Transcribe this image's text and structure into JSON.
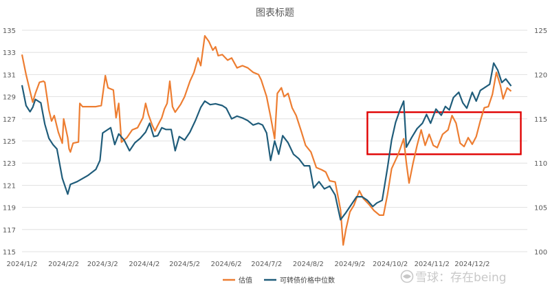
{
  "colors": {
    "valuation": "#ED7D31",
    "convertible_median": "#1F5C7A",
    "highlight_box": "#E00000",
    "grid": "#D9D9D9",
    "text": "#595959"
  },
  "watermark": {
    "icon": "snowball-icon",
    "text": "雪球：存在being"
  },
  "chart_data": {
    "type": "line",
    "title": "图表标题",
    "x_tick_labels": [
      "2024/1/2",
      "2024/2/2",
      "2024/3/2",
      "2024/4/2",
      "2024/5/2",
      "2024/6/2",
      "2024/7/2",
      "2024/8/2",
      "2024/9/2",
      "2024/10/2",
      "2024/11/2",
      "2024/12/2"
    ],
    "left_axis": {
      "ylim": [
        115,
        135
      ],
      "ticks": [
        115,
        117,
        119,
        121,
        123,
        125,
        127,
        129,
        131,
        133,
        135
      ]
    },
    "right_axis": {
      "ylim": [
        100,
        125
      ],
      "ticks": [
        100,
        105,
        110,
        115,
        120,
        125
      ]
    },
    "grid": "horizontal",
    "legend_position": "bottom",
    "series": [
      {
        "name": "估值",
        "axis": "left",
        "color": "#ED7D31",
        "points": [
          [
            "2024-01-02",
            132.8
          ],
          [
            "2024-01-05",
            131.0
          ],
          [
            "2024-01-08",
            129.5
          ],
          [
            "2024-01-10",
            128.5
          ],
          [
            "2024-01-12",
            129.3
          ],
          [
            "2024-01-15",
            130.3
          ],
          [
            "2024-01-18",
            130.4
          ],
          [
            "2024-01-19",
            130.3
          ],
          [
            "2024-01-22",
            127.8
          ],
          [
            "2024-01-24",
            126.8
          ],
          [
            "2024-01-26",
            127.3
          ],
          [
            "2024-01-29",
            125.8
          ],
          [
            "2024-02-01",
            124.8
          ],
          [
            "2024-02-02",
            127.0
          ],
          [
            "2024-02-05",
            125.3
          ],
          [
            "2024-02-06",
            124.3
          ],
          [
            "2024-02-07",
            124.0
          ],
          [
            "2024-02-09",
            124.8
          ],
          [
            "2024-02-13",
            124.9
          ],
          [
            "2024-02-14",
            128.4
          ],
          [
            "2024-02-16",
            128.1
          ],
          [
            "2024-02-20",
            128.1
          ],
          [
            "2024-02-26",
            128.1
          ],
          [
            "2024-03-01",
            128.2
          ],
          [
            "2024-03-04",
            130.9
          ],
          [
            "2024-03-06",
            129.8
          ],
          [
            "2024-03-10",
            129.6
          ],
          [
            "2024-03-12",
            127.1
          ],
          [
            "2024-03-14",
            128.4
          ],
          [
            "2024-03-16",
            124.9
          ],
          [
            "2024-03-20",
            125.3
          ],
          [
            "2024-03-24",
            126.0
          ],
          [
            "2024-03-28",
            126.2
          ],
          [
            "2024-04-01",
            127.1
          ],
          [
            "2024-04-03",
            128.4
          ],
          [
            "2024-04-05",
            127.4
          ],
          [
            "2024-04-08",
            126.4
          ],
          [
            "2024-04-10",
            125.9
          ],
          [
            "2024-04-12",
            126.4
          ],
          [
            "2024-04-15",
            127.1
          ],
          [
            "2024-04-17",
            127.9
          ],
          [
            "2024-04-19",
            128.4
          ],
          [
            "2024-04-21",
            130.4
          ],
          [
            "2024-04-23",
            128.1
          ],
          [
            "2024-04-25",
            127.6
          ],
          [
            "2024-04-29",
            128.3
          ],
          [
            "2024-05-02",
            129.0
          ],
          [
            "2024-05-06",
            130.4
          ],
          [
            "2024-05-09",
            131.2
          ],
          [
            "2024-05-12",
            132.5
          ],
          [
            "2024-05-14",
            131.8
          ],
          [
            "2024-05-17",
            134.5
          ],
          [
            "2024-05-20",
            134.0
          ],
          [
            "2024-05-23",
            133.2
          ],
          [
            "2024-05-25",
            133.5
          ],
          [
            "2024-05-27",
            132.7
          ],
          [
            "2024-05-30",
            132.8
          ],
          [
            "2024-06-03",
            132.3
          ],
          [
            "2024-06-06",
            132.5
          ],
          [
            "2024-06-10",
            131.6
          ],
          [
            "2024-06-14",
            131.8
          ],
          [
            "2024-06-18",
            131.6
          ],
          [
            "2024-06-22",
            131.2
          ],
          [
            "2024-06-26",
            131.0
          ],
          [
            "2024-06-28",
            130.5
          ],
          [
            "2024-07-02",
            129.0
          ],
          [
            "2024-07-05",
            127.2
          ],
          [
            "2024-07-08",
            125.2
          ],
          [
            "2024-07-10",
            129.3
          ],
          [
            "2024-07-13",
            129.8
          ],
          [
            "2024-07-15",
            129.0
          ],
          [
            "2024-07-18",
            129.3
          ],
          [
            "2024-07-21",
            128.0
          ],
          [
            "2024-07-24",
            127.3
          ],
          [
            "2024-07-28",
            125.8
          ],
          [
            "2024-07-31",
            124.6
          ],
          [
            "2024-08-04",
            124.0
          ],
          [
            "2024-08-08",
            122.6
          ],
          [
            "2024-08-12",
            122.4
          ],
          [
            "2024-08-15",
            122.2
          ],
          [
            "2024-08-18",
            121.4
          ],
          [
            "2024-08-22",
            121.3
          ],
          [
            "2024-08-26",
            118.8
          ],
          [
            "2024-08-28",
            115.6
          ],
          [
            "2024-08-30",
            117.0
          ],
          [
            "2024-09-02",
            118.6
          ],
          [
            "2024-09-05",
            119.2
          ],
          [
            "2024-09-09",
            120.5
          ],
          [
            "2024-09-12",
            119.8
          ],
          [
            "2024-09-16",
            119.3
          ],
          [
            "2024-09-20",
            118.7
          ],
          [
            "2024-09-24",
            118.3
          ],
          [
            "2024-09-27",
            118.3
          ],
          [
            "2024-09-30",
            120.2
          ],
          [
            "2024-10-03",
            122.5
          ],
          [
            "2024-10-08",
            123.8
          ],
          [
            "2024-10-12",
            125.2
          ],
          [
            "2024-10-14",
            123.0
          ],
          [
            "2024-10-16",
            121.2
          ],
          [
            "2024-10-19",
            123.0
          ],
          [
            "2024-10-22",
            124.6
          ],
          [
            "2024-10-25",
            126.0
          ],
          [
            "2024-10-28",
            124.6
          ],
          [
            "2024-10-31",
            125.6
          ],
          [
            "2024-11-03",
            124.6
          ],
          [
            "2024-11-06",
            124.4
          ],
          [
            "2024-11-10",
            125.6
          ],
          [
            "2024-11-14",
            126.0
          ],
          [
            "2024-11-17",
            127.3
          ],
          [
            "2024-11-20",
            126.6
          ],
          [
            "2024-11-23",
            124.8
          ],
          [
            "2024-11-26",
            124.5
          ],
          [
            "2024-11-29",
            125.3
          ],
          [
            "2024-12-02",
            124.7
          ],
          [
            "2024-12-05",
            125.4
          ],
          [
            "2024-12-08",
            126.8
          ],
          [
            "2024-12-11",
            128.0
          ],
          [
            "2024-12-14",
            128.1
          ],
          [
            "2024-12-17",
            129.2
          ],
          [
            "2024-12-20",
            131.2
          ],
          [
            "2024-12-23",
            130.0
          ],
          [
            "2024-12-25",
            128.8
          ],
          [
            "2024-12-28",
            129.8
          ],
          [
            "2024-12-31",
            129.5
          ]
        ]
      },
      {
        "name": "可转债价格中位数",
        "axis": "right",
        "color": "#1F5C7A",
        "points": [
          [
            "2024-01-02",
            118.8
          ],
          [
            "2024-01-05",
            116.5
          ],
          [
            "2024-01-08",
            115.8
          ],
          [
            "2024-01-10",
            116.3
          ],
          [
            "2024-01-12",
            117.2
          ],
          [
            "2024-01-16",
            116.8
          ],
          [
            "2024-01-19",
            114.4
          ],
          [
            "2024-01-22",
            112.8
          ],
          [
            "2024-01-25",
            112.1
          ],
          [
            "2024-01-28",
            111.6
          ],
          [
            "2024-02-01",
            108.3
          ],
          [
            "2024-02-05",
            106.5
          ],
          [
            "2024-02-07",
            107.6
          ],
          [
            "2024-02-12",
            107.9
          ],
          [
            "2024-02-20",
            108.6
          ],
          [
            "2024-02-26",
            109.3
          ],
          [
            "2024-02-29",
            110.3
          ],
          [
            "2024-03-02",
            113.4
          ],
          [
            "2024-03-05",
            113.7
          ],
          [
            "2024-03-08",
            114.0
          ],
          [
            "2024-03-11",
            112.1
          ],
          [
            "2024-03-14",
            113.3
          ],
          [
            "2024-03-18",
            112.6
          ],
          [
            "2024-03-22",
            111.4
          ],
          [
            "2024-03-26",
            112.3
          ],
          [
            "2024-03-30",
            112.8
          ],
          [
            "2024-04-03",
            113.5
          ],
          [
            "2024-04-06",
            114.5
          ],
          [
            "2024-04-09",
            113.0
          ],
          [
            "2024-04-12",
            113.1
          ],
          [
            "2024-04-15",
            114.0
          ],
          [
            "2024-04-18",
            113.8
          ],
          [
            "2024-04-22",
            113.8
          ],
          [
            "2024-04-25",
            111.4
          ],
          [
            "2024-04-28",
            113.0
          ],
          [
            "2024-05-02",
            112.6
          ],
          [
            "2024-05-06",
            113.5
          ],
          [
            "2024-05-10",
            114.8
          ],
          [
            "2024-05-14",
            116.3
          ],
          [
            "2024-05-17",
            117.0
          ],
          [
            "2024-05-21",
            116.6
          ],
          [
            "2024-05-25",
            116.7
          ],
          [
            "2024-05-30",
            116.5
          ],
          [
            "2024-06-02",
            116.2
          ],
          [
            "2024-06-06",
            115.0
          ],
          [
            "2024-06-10",
            115.3
          ],
          [
            "2024-06-14",
            115.1
          ],
          [
            "2024-06-18",
            114.8
          ],
          [
            "2024-06-22",
            114.3
          ],
          [
            "2024-06-26",
            114.5
          ],
          [
            "2024-06-29",
            114.3
          ],
          [
            "2024-07-02",
            113.4
          ],
          [
            "2024-07-05",
            110.3
          ],
          [
            "2024-07-08",
            112.5
          ],
          [
            "2024-07-11",
            111.0
          ],
          [
            "2024-07-14",
            113.1
          ],
          [
            "2024-07-18",
            112.3
          ],
          [
            "2024-07-22",
            111.0
          ],
          [
            "2024-07-26",
            110.5
          ],
          [
            "2024-07-30",
            109.7
          ],
          [
            "2024-08-03",
            109.7
          ],
          [
            "2024-08-06",
            107.2
          ],
          [
            "2024-08-10",
            107.9
          ],
          [
            "2024-08-14",
            107.1
          ],
          [
            "2024-08-18",
            107.4
          ],
          [
            "2024-08-22",
            106.4
          ],
          [
            "2024-08-26",
            103.6
          ],
          [
            "2024-08-30",
            104.4
          ],
          [
            "2024-09-03",
            105.3
          ],
          [
            "2024-09-07",
            106.2
          ],
          [
            "2024-09-11",
            106.2
          ],
          [
            "2024-09-15",
            105.8
          ],
          [
            "2024-09-19",
            105.1
          ],
          [
            "2024-09-22",
            105.5
          ],
          [
            "2024-09-26",
            105.8
          ],
          [
            "2024-09-30",
            109.5
          ],
          [
            "2024-10-03",
            112.6
          ],
          [
            "2024-10-06",
            114.6
          ],
          [
            "2024-10-09",
            115.9
          ],
          [
            "2024-10-12",
            117.0
          ],
          [
            "2024-10-14",
            111.8
          ],
          [
            "2024-10-18",
            112.9
          ],
          [
            "2024-10-22",
            113.9
          ],
          [
            "2024-10-26",
            114.5
          ],
          [
            "2024-10-29",
            115.5
          ],
          [
            "2024-11-01",
            114.5
          ],
          [
            "2024-11-05",
            116.1
          ],
          [
            "2024-11-09",
            115.4
          ],
          [
            "2024-11-12",
            116.4
          ],
          [
            "2024-11-15",
            116.0
          ],
          [
            "2024-11-18",
            117.4
          ],
          [
            "2024-11-22",
            118.0
          ],
          [
            "2024-11-25",
            116.8
          ],
          [
            "2024-11-28",
            116.2
          ],
          [
            "2024-12-02",
            118.0
          ],
          [
            "2024-12-05",
            117.0
          ],
          [
            "2024-12-08",
            118.2
          ],
          [
            "2024-12-12",
            118.6
          ],
          [
            "2024-12-15",
            118.9
          ],
          [
            "2024-12-18",
            121.3
          ],
          [
            "2024-12-21",
            120.5
          ],
          [
            "2024-12-24",
            119.1
          ],
          [
            "2024-12-27",
            119.5
          ],
          [
            "2024-12-31",
            118.7
          ]
        ]
      }
    ],
    "annotation": {
      "type": "rectangle",
      "color": "#E00000",
      "x_range": [
        "2024-09-15",
        "2024-12-31"
      ],
      "left_axis_range": [
        123.8,
        127.6
      ]
    }
  }
}
